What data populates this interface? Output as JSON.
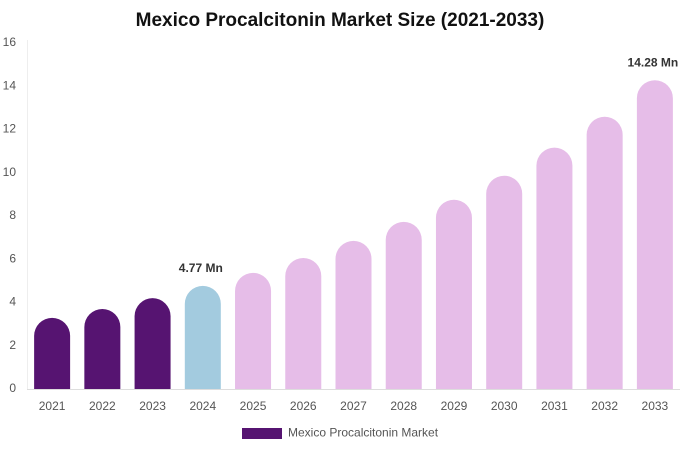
{
  "chart_data": {
    "type": "bar",
    "title": "Mexico Procalcitonin Market Size (2021-2033)",
    "categories": [
      "2021",
      "2022",
      "2023",
      "2024",
      "2025",
      "2026",
      "2027",
      "2028",
      "2029",
      "2030",
      "2031",
      "2032",
      "2033"
    ],
    "series": [
      {
        "name": "Mexico Procalcitonin Market",
        "color": "#561471",
        "values": [
          3.29,
          3.7,
          4.2,
          4.77,
          5.37,
          6.06,
          6.85,
          7.73,
          8.75,
          9.86,
          11.16,
          12.59,
          14.28
        ],
        "value_labels": [
          null,
          null,
          null,
          "4.77 Mn",
          null,
          null,
          null,
          null,
          null,
          null,
          null,
          null,
          "14.28 Mn"
        ],
        "colors": [
          "#561471",
          "#561471",
          "#561471",
          "#a3cbdf",
          "#e6bde8",
          "#e6bde8",
          "#e6bde8",
          "#e6bde8",
          "#e6bde8",
          "#e6bde8",
          "#e6bde8",
          "#e6bde8",
          "#e6bde8"
        ]
      }
    ],
    "ylim": [
      0,
      16
    ],
    "yticks": [
      0,
      2,
      4,
      6,
      8,
      10,
      12,
      14,
      16
    ],
    "grid": false
  }
}
